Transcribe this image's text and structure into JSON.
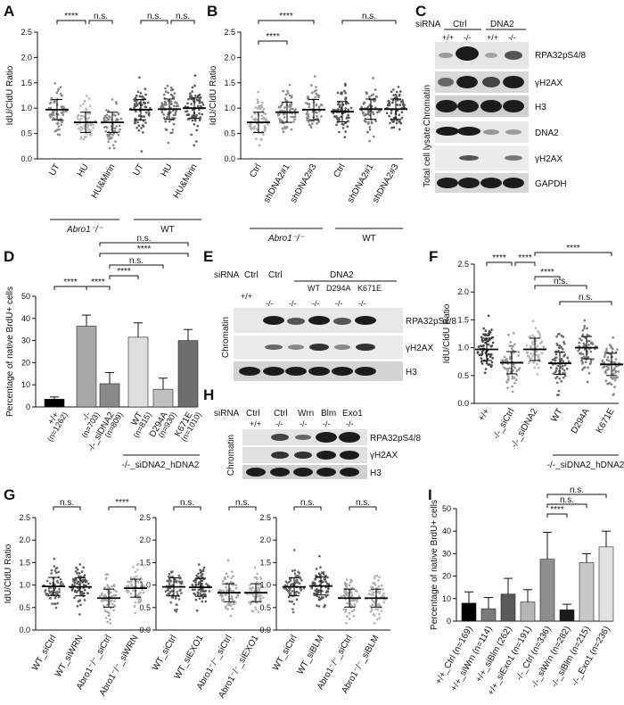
{
  "labels": [
    "A",
    "B",
    "C",
    "D",
    "E",
    "F",
    "G",
    "H",
    "I"
  ],
  "common": {
    "ratio_axis": "IdU/CldU Ratio",
    "ratio_ticks": [
      "0.0",
      "0.5",
      "1.0",
      "1.5",
      "2.0",
      "2.5"
    ],
    "brdu_axis": "Percentage of native BrdU+ cells",
    "ns": "n.s.",
    "stars": "****"
  },
  "A": {
    "groups": [
      "UT",
      "HU",
      "HU&Mirin",
      "UT",
      "HU",
      "HU&Mirin"
    ],
    "geno1": "Abro1⁻/⁻",
    "geno2": "WT",
    "medians": [
      0.97,
      0.72,
      0.72,
      0.97,
      0.98,
      1.0
    ],
    "sig": [
      "****",
      "n.s.",
      "n.s.",
      "n.s."
    ]
  },
  "B": {
    "groups": [
      "Ctrl",
      "shDNA2#1",
      "shDNA2#3",
      "Ctrl",
      "shDNA2#1",
      "shDNA2#3"
    ],
    "geno1": "Abro1⁻/⁻",
    "geno2": "WT",
    "medians": [
      0.72,
      0.92,
      0.97,
      0.93,
      0.98,
      0.98
    ],
    "sig": [
      "****",
      "****",
      "n.s."
    ]
  },
  "C": {
    "siRNA": "siRNA",
    "ctrl": "Ctrl",
    "dna2": "DNA2",
    "lanes": [
      "+/+",
      "-/-",
      "+/+",
      "-/-"
    ],
    "bands_top": [
      "RPA32pS4/8",
      "γH2AX",
      "H3"
    ],
    "bands_bottom": [
      "DNA2",
      "γH2AX",
      "GAPDH"
    ],
    "section_top": "Chromatin",
    "section_bottom": "Total cell lysate"
  },
  "D": {
    "categories": [
      "+/+",
      "-/-",
      "-/-_siDNA2",
      "WT",
      "D294A",
      "K671E"
    ],
    "n": [
      "(n=1262)",
      "(n=703)",
      "(n=809)",
      "(n=815)",
      "(n=930)",
      "(n=1010)"
    ],
    "values": [
      3.5,
      36.5,
      10.5,
      31.5,
      8.0,
      30.0
    ],
    "errors": [
      1.0,
      5.0,
      5.0,
      6.5,
      5.0,
      5.0
    ],
    "colors": [
      "#000000",
      "#a8a8a8",
      "#8a8a8a",
      "#dedede",
      "#bfbfbf",
      "#6e6e6e"
    ],
    "ylim": [
      0,
      50
    ],
    "yticks": [
      "0",
      "10",
      "20",
      "30",
      "40",
      "50"
    ],
    "group_label": "-/-_siDNA2_hDNA2",
    "sig": [
      "****",
      "****",
      "****",
      "n.s.",
      "****",
      "n.s."
    ]
  },
  "E": {
    "siRNA": "siRNA",
    "cols": [
      "Ctrl",
      "Ctrl",
      "DNA2"
    ],
    "sub": [
      "WT",
      "D294A",
      "K671E"
    ],
    "lanes": [
      "+/+",
      "-/-",
      "-/-",
      "-/-",
      "-/-",
      "-/-"
    ],
    "bands": [
      "RPA32pS4/8",
      "γH2AX",
      "H3"
    ],
    "section": "Chromatin"
  },
  "F": {
    "groups": [
      "+/+",
      "-/-_siCtrl",
      "-/-_siDNA2",
      "WT",
      "D294A",
      "K671E"
    ],
    "group_label": "-/-_siDNA2_hDNA2",
    "medians": [
      0.97,
      0.73,
      0.97,
      0.72,
      1.0,
      0.7
    ],
    "sig": [
      "****",
      "****",
      "****",
      "****",
      "n.s.",
      "****",
      "n.s."
    ]
  },
  "G": {
    "panels": [
      {
        "groups": [
          "WT_siCtrl",
          "WT_siWRN",
          "Abro1⁻/⁻_siCtrl",
          "Abro1⁻/⁻_siWRN"
        ],
        "medians": [
          0.97,
          0.96,
          0.71,
          0.93
        ],
        "sig": [
          "n.s.",
          "****"
        ]
      },
      {
        "groups": [
          "WT_siCtrl",
          "WT_siEXO1",
          "Abro1⁻/⁻_siCtrl",
          "Abro1⁻/⁻_siEXO1"
        ],
        "medians": [
          0.96,
          0.95,
          0.83,
          0.83
        ],
        "sig": [
          "n.s.",
          "n.s."
        ]
      },
      {
        "groups": [
          "WT_siCtrl",
          "WT_siBLM",
          "Abro1⁻/⁻_siCtrl",
          "Abro1⁻/⁻_siBLM"
        ],
        "medians": [
          0.96,
          0.98,
          0.71,
          0.71
        ],
        "sig": [
          "n.s.",
          "n.s."
        ]
      }
    ]
  },
  "H": {
    "siRNA": "siRNA",
    "cols": [
      "Ctrl",
      "Ctrl",
      "Wrn",
      "Blm",
      "Exo1"
    ],
    "lanes": [
      "+/+",
      "-/-",
      "-/-",
      "-/-",
      "-/-"
    ],
    "bands": [
      "RPA32pS4/8",
      "γH2AX",
      "H3"
    ],
    "section": "Chromatin"
  },
  "I": {
    "categories": [
      "+/+_Ctrl (n=169)",
      "+/+_siWrn (n=114)",
      "+/+_siBlm (262)",
      "+/+_siExo1 (n=191)",
      "-/-_Ctrl (n=336)",
      "-/-_siWrn (n=282)",
      "-/-_siBlm (n=215)",
      "-/-_Exo1 (n=236)"
    ],
    "values": [
      8.0,
      5.5,
      12.0,
      8.5,
      27.5,
      5.0,
      26.0,
      33.0
    ],
    "errors": [
      5.0,
      5.0,
      7.0,
      5.5,
      12.0,
      2.5,
      4.0,
      7.0
    ],
    "colors": [
      "#000000",
      "#7a7a7a",
      "#5a5a5a",
      "#b5b5b5",
      "#8e8e8e",
      "#1a1a1a",
      "#c8c8c8",
      "#e2e2e2"
    ],
    "ylim": [
      0,
      50
    ],
    "yticks": [
      "0",
      "10",
      "20",
      "30",
      "40",
      "50"
    ],
    "sig": [
      "****",
      "n.s.",
      "n.s."
    ]
  }
}
